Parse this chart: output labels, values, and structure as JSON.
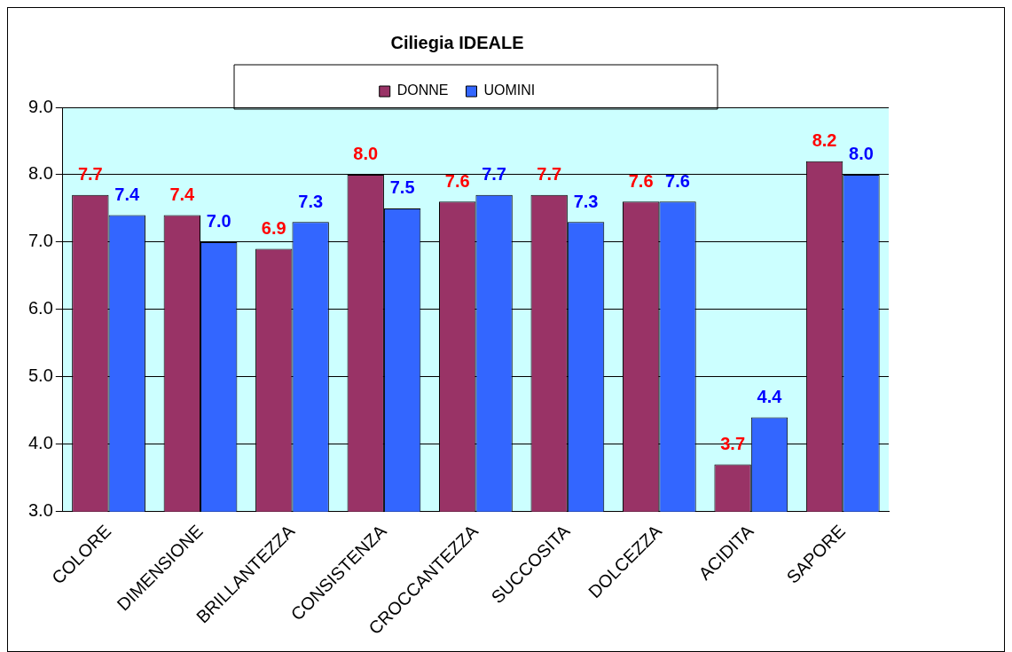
{
  "chart_data": {
    "type": "bar",
    "title": "Ciliegia IDEALE",
    "categories": [
      "COLORE",
      "DIMENSIONE",
      "BRILLANTEZZA",
      "CONSISTENZA",
      "CROCCANTEZZA",
      "SUCCOSITA",
      "DOLCEZZA",
      "ACIDITA",
      "SAPORE"
    ],
    "series": [
      {
        "name": "DONNE",
        "color": "#993366",
        "values": [
          7.7,
          7.4,
          6.9,
          8.0,
          7.6,
          7.7,
          7.6,
          3.7,
          8.2
        ],
        "value_labels": [
          "7.7",
          "7.4",
          "6.9",
          "8.0",
          "7.6",
          "7.7",
          "7.6",
          "3.7",
          "8.2"
        ]
      },
      {
        "name": "UOMINI",
        "color": "#3366ff",
        "values": [
          7.4,
          7.0,
          7.3,
          7.5,
          7.7,
          7.3,
          7.6,
          4.4,
          8.0
        ],
        "value_labels": [
          "7.4",
          "7.0",
          "7.3",
          "7.5",
          "7.7",
          "7.3",
          "7.6",
          "4.4",
          "8.0"
        ]
      }
    ],
    "ylim": [
      3,
      9
    ],
    "yticks": [
      {
        "value": 3,
        "label": "3.0"
      },
      {
        "value": 4,
        "label": "4.0"
      },
      {
        "value": 5,
        "label": "5.0"
      },
      {
        "value": 6,
        "label": "6.0"
      },
      {
        "value": 7,
        "label": "7.0"
      },
      {
        "value": 8,
        "label": "8.0"
      },
      {
        "value": 9,
        "label": "9.0"
      }
    ],
    "grid": "y",
    "legend": "top"
  }
}
